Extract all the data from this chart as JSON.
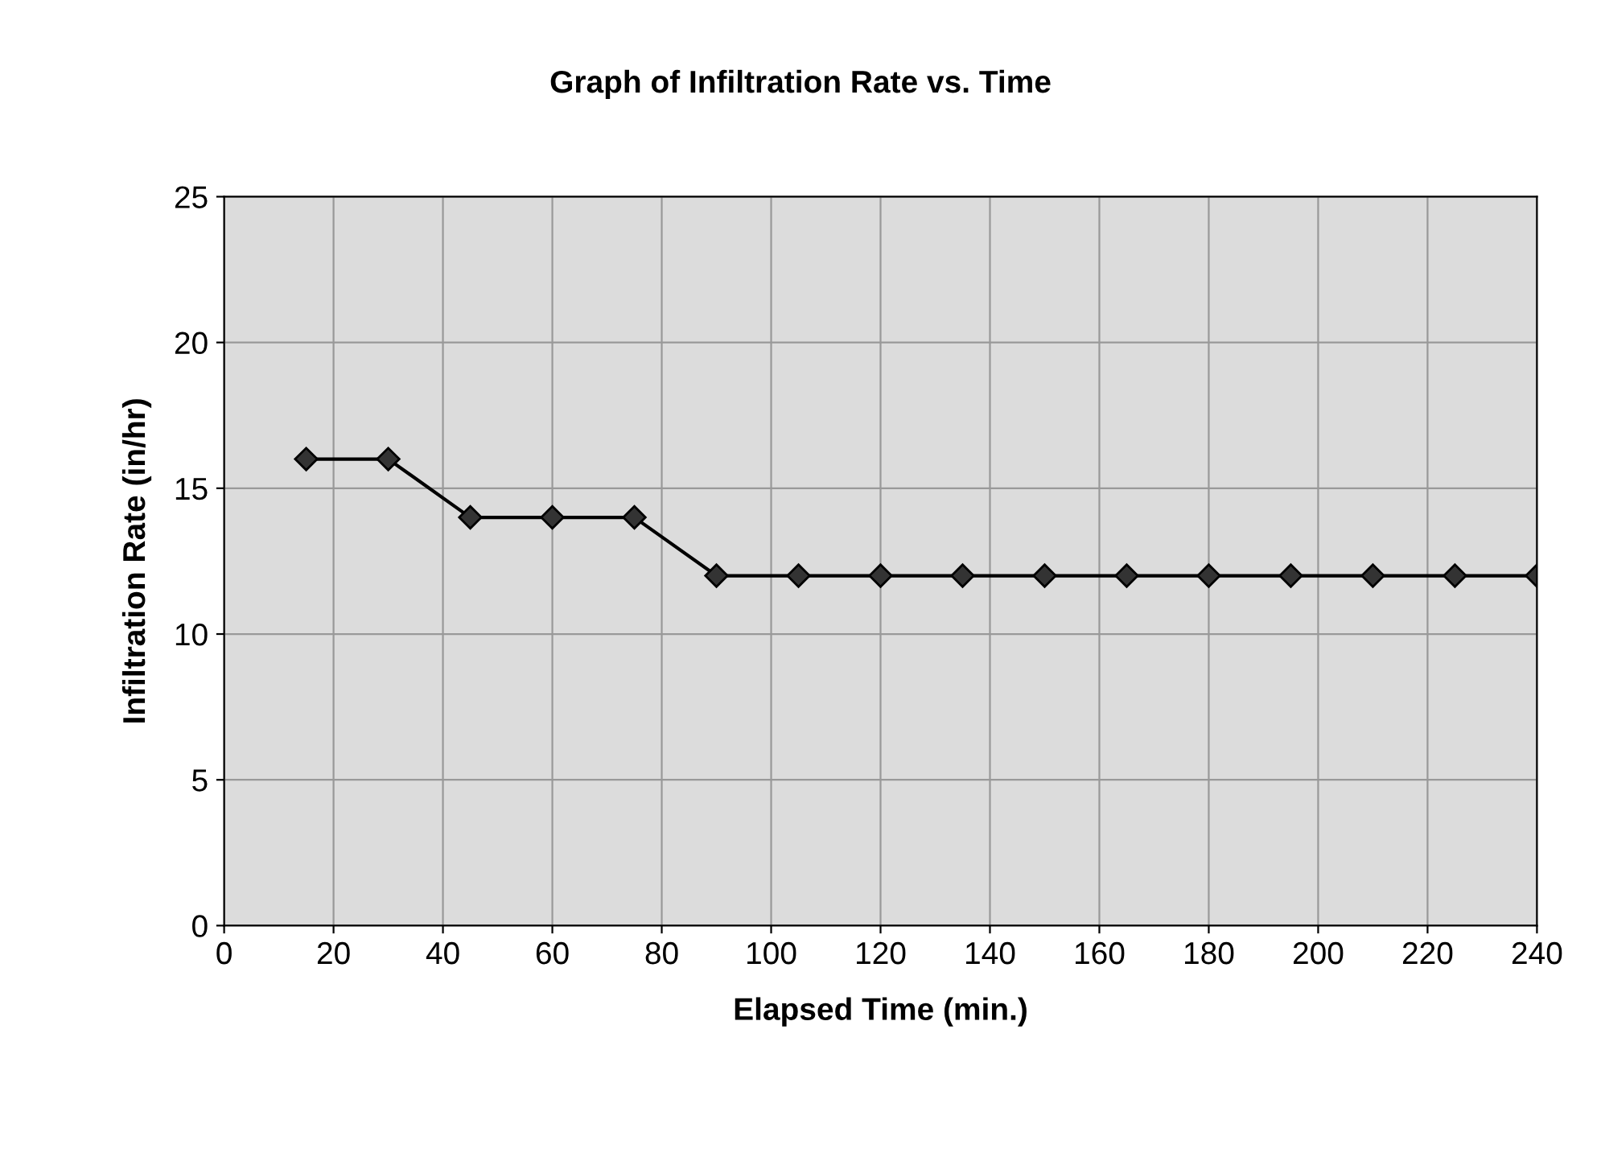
{
  "chart_data": {
    "type": "line",
    "title": "Graph of Infiltration Rate vs. Time",
    "xlabel": "Elapsed Time (min.)",
    "ylabel": "Infiltration Rate (in/hr)",
    "x": [
      15,
      30,
      45,
      60,
      75,
      90,
      105,
      120,
      135,
      150,
      165,
      180,
      195,
      210,
      225,
      240
    ],
    "series": [
      {
        "color": "#000000",
        "values": [
          16,
          16,
          14,
          14,
          14,
          12,
          12,
          12,
          12,
          12,
          12,
          12,
          12,
          12,
          12,
          12
        ]
      }
    ],
    "xlim": [
      0,
      240
    ],
    "xticks": [
      0,
      20,
      40,
      60,
      80,
      100,
      120,
      140,
      160,
      180,
      200,
      220,
      240
    ],
    "ylim": [
      0,
      25
    ],
    "yticks": [
      0,
      5,
      10,
      15,
      20,
      25
    ],
    "grid": true,
    "marker": "diamond",
    "line_style": "solid",
    "legend": false
  }
}
